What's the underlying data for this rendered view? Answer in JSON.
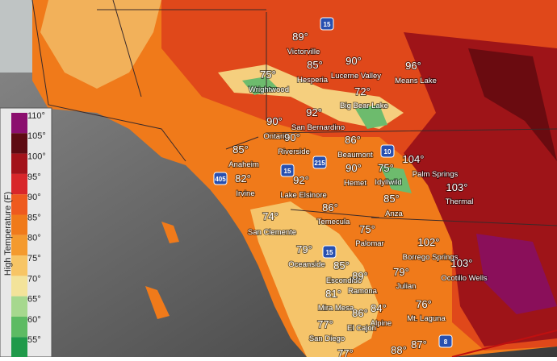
{
  "legend": {
    "title": "High Temperature (F)",
    "labels": [
      "110°",
      "105°",
      "100°",
      "95°",
      "90°",
      "85°",
      "80°",
      "75°",
      "70°",
      "65°",
      "60°",
      "55°"
    ]
  },
  "cities": [
    {
      "name": "Victorville",
      "temp": "89°"
    },
    {
      "name": "Hesperia",
      "temp": "85°"
    },
    {
      "name": "Lucerne Valley",
      "temp": "90°"
    },
    {
      "name": "Means Lake",
      "temp": "96°"
    },
    {
      "name": "Wrightwood",
      "temp": "75°"
    },
    {
      "name": "Big Bear Lake",
      "temp": "72°"
    },
    {
      "name": "San Bernardino",
      "temp": "92°"
    },
    {
      "name": "Ontario",
      "temp": "90°"
    },
    {
      "name": "Riverside",
      "temp": "90°"
    },
    {
      "name": "Beaumont",
      "temp": "86°"
    },
    {
      "name": "Anaheim",
      "temp": "85°"
    },
    {
      "name": "Palm Springs",
      "temp": "104°"
    },
    {
      "name": "Irvine",
      "temp": "82°"
    },
    {
      "name": "Hemet",
      "temp": "90°"
    },
    {
      "name": "Idyllwild",
      "temp": "75°"
    },
    {
      "name": "Lake Elsinore",
      "temp": "92°"
    },
    {
      "name": "Thermal",
      "temp": "103°"
    },
    {
      "name": "Anza",
      "temp": "85°"
    },
    {
      "name": "Temecula",
      "temp": "86°"
    },
    {
      "name": "San Clemente",
      "temp": "74°"
    },
    {
      "name": "Palomar",
      "temp": "75°"
    },
    {
      "name": "Borrego Springs",
      "temp": "102°"
    },
    {
      "name": "Oceanside",
      "temp": "79°"
    },
    {
      "name": "Ocotillo Wells",
      "temp": "103°"
    },
    {
      "name": "Escondido",
      "temp": "85°"
    },
    {
      "name": "Julian",
      "temp": "79°"
    },
    {
      "name": "Ramona",
      "temp": "89°"
    },
    {
      "name": "Mira Mesa",
      "temp": "81°"
    },
    {
      "name": "Mt. Laguna",
      "temp": "76°"
    },
    {
      "name": "Alpine",
      "temp": "84°"
    },
    {
      "name": "El Cajon",
      "temp": "86°"
    },
    {
      "name": "San Diego",
      "temp": "77°"
    }
  ],
  "extra_temps": [
    "88°",
    "87°",
    "77°"
  ],
  "highways": [
    "15",
    "15",
    "215",
    "10",
    "405",
    "15",
    "8"
  ]
}
